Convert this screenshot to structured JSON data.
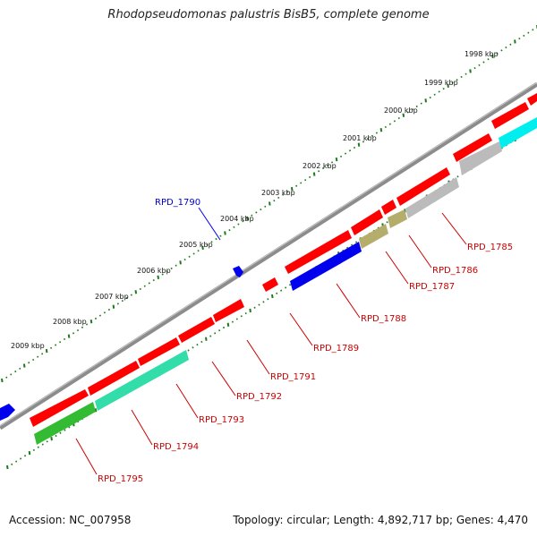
{
  "title": "Rhodopseudomonas palustris BisB5, complete genome",
  "footer": {
    "accession_label": "Accession:",
    "accession": "NC_007958",
    "topology_text": "Topology: circular; Length: 4,892,717 bp; Genes: 4,470"
  },
  "colors": {
    "backbone": "#8c8c8c",
    "tick": "#1f7a1f",
    "label_forward": "#0000cc",
    "label_reverse": "#cc0000"
  },
  "scale_labels": [
    "1998 kbp",
    "1999 kbp",
    "2000 kbp",
    "2001 kbp",
    "2002 kbp",
    "2003 kbp",
    "2004 kbp",
    "2005 kbp",
    "2006 kbp",
    "2007 kbp",
    "2008 kbp",
    "2009 kbp"
  ],
  "forward_genes": [
    {
      "label": "RPD_1790",
      "color": "#0000ee"
    }
  ],
  "reverse_genes": [
    {
      "label": "RPD_1785",
      "color": "#ff0000"
    },
    {
      "label": "RPD_1786",
      "color": "#bbbbbb"
    },
    {
      "label": "RPD_1787",
      "color": "#b5ad6b"
    },
    {
      "label": "RPD_1788",
      "color": "#0000ee"
    },
    {
      "label": "RPD_1789",
      "color": "#ff0000"
    },
    {
      "label": "RPD_1791",
      "color": "#ff0000"
    },
    {
      "label": "RPD_1792",
      "color": "#ff0000"
    },
    {
      "label": "RPD_1793",
      "color": "#ff0000"
    },
    {
      "label": "RPD_1794",
      "color": "#33ddaa"
    },
    {
      "label": "RPD_1795",
      "color": "#33bb33"
    }
  ]
}
